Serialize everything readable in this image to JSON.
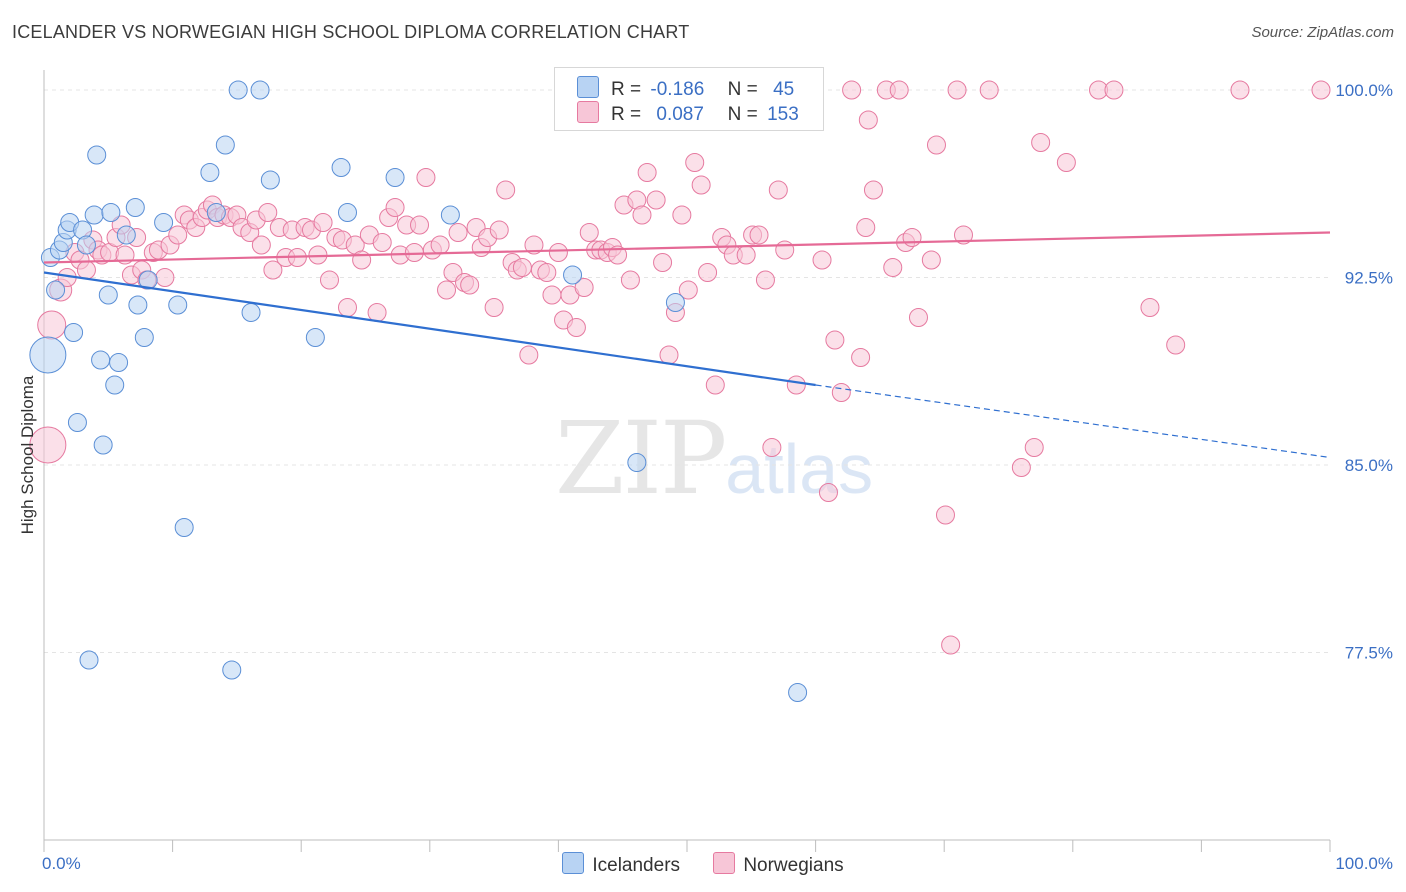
{
  "title": "ICELANDER VS NORWEGIAN HIGH SCHOOL DIPLOMA CORRELATION CHART",
  "source": "Source: ZipAtlas.com",
  "watermark": {
    "zip": "ZIP",
    "atlas": "atlas"
  },
  "colors": {
    "blue": "#5b8fd6",
    "blue_fill": "#b8d3f3",
    "pink": "#e67aa0",
    "pink_fill": "#f7c6d7",
    "blue_line": "#2f6fd0",
    "pink_line": "#e56a96",
    "tick_text": "#3b6fc4"
  },
  "legend_top": [
    {
      "r_label": "R =",
      "r_value": "-0.186",
      "n_label": "N =",
      "n_value": "45"
    },
    {
      "r_label": "R =",
      "r_value": "0.087",
      "n_label": "N =",
      "n_value": "153"
    }
  ],
  "legend_bottom": [
    {
      "label": "Icelanders"
    },
    {
      "label": "Norwegians"
    }
  ],
  "chart_data": {
    "type": "scatter",
    "xlabel": "",
    "ylabel": "High School Diploma",
    "xlim": [
      0,
      100
    ],
    "ylim": [
      70,
      100.8
    ],
    "x_tick_labels": [
      "0.0%",
      "100.0%"
    ],
    "y_ticks": [
      77.5,
      85.0,
      92.5,
      100.0
    ],
    "y_tick_labels": [
      "77.5%",
      "85.0%",
      "92.5%",
      "100.0%"
    ],
    "grid": true,
    "series": [
      {
        "name": "Icelanders",
        "trend": {
          "x0": 0,
          "y0": 92.7,
          "x1": 60,
          "y1": 88.2,
          "dash_x1": 100,
          "dash_y1": 85.3
        },
        "points": [
          [
            0.3,
            89.4,
            18
          ],
          [
            0.5,
            93.3,
            9
          ],
          [
            0.9,
            92.0,
            9
          ],
          [
            1.2,
            93.6,
            9
          ],
          [
            1.5,
            93.9,
            9
          ],
          [
            1.8,
            94.4,
            9
          ],
          [
            2.0,
            94.7,
            9
          ],
          [
            2.3,
            90.3,
            9
          ],
          [
            2.6,
            86.7,
            9
          ],
          [
            3.0,
            94.4,
            9
          ],
          [
            3.3,
            93.8,
            9
          ],
          [
            3.5,
            77.2,
            9
          ],
          [
            3.9,
            95.0,
            9
          ],
          [
            4.1,
            97.4,
            9
          ],
          [
            4.4,
            89.2,
            9
          ],
          [
            4.6,
            85.8,
            9
          ],
          [
            5.0,
            91.8,
            9
          ],
          [
            5.2,
            95.1,
            9
          ],
          [
            5.5,
            88.2,
            9
          ],
          [
            5.8,
            89.1,
            9
          ],
          [
            6.4,
            94.2,
            9
          ],
          [
            7.1,
            95.3,
            9
          ],
          [
            7.3,
            91.4,
            9
          ],
          [
            7.8,
            90.1,
            9
          ],
          [
            8.1,
            92.4,
            9
          ],
          [
            9.3,
            94.7,
            9
          ],
          [
            10.4,
            91.4,
            9
          ],
          [
            10.9,
            82.5,
            9
          ],
          [
            12.9,
            96.7,
            9
          ],
          [
            13.4,
            95.1,
            9
          ],
          [
            14.1,
            97.8,
            9
          ],
          [
            14.6,
            76.8,
            9
          ],
          [
            15.1,
            100.0,
            9
          ],
          [
            16.1,
            91.1,
            9
          ],
          [
            16.8,
            100.0,
            9
          ],
          [
            17.6,
            96.4,
            9
          ],
          [
            21.1,
            90.1,
            9
          ],
          [
            23.1,
            96.9,
            9
          ],
          [
            23.6,
            95.1,
            9
          ],
          [
            27.3,
            96.5,
            9
          ],
          [
            31.6,
            95.0,
            9
          ],
          [
            41.1,
            92.6,
            9
          ],
          [
            46.1,
            85.1,
            9
          ],
          [
            49.1,
            91.5,
            9
          ],
          [
            58.6,
            75.9,
            9
          ]
        ]
      },
      {
        "name": "Norwegians",
        "trend": {
          "x0": 0,
          "y0": 93.1,
          "x1": 100,
          "y1": 94.3
        },
        "points": [
          [
            0.3,
            85.8,
            18
          ],
          [
            0.6,
            90.6,
            14
          ],
          [
            1.3,
            92.0,
            11
          ],
          [
            1.8,
            92.5,
            9
          ],
          [
            2.4,
            93.5,
            9
          ],
          [
            2.8,
            93.2,
            9
          ],
          [
            3.3,
            92.8,
            9
          ],
          [
            3.8,
            94.0,
            9
          ],
          [
            4.2,
            93.6,
            9
          ],
          [
            4.5,
            93.4,
            9
          ],
          [
            5.1,
            93.5,
            9
          ],
          [
            5.6,
            94.1,
            9
          ],
          [
            6.0,
            94.6,
            9
          ],
          [
            6.3,
            93.4,
            9
          ],
          [
            6.8,
            92.6,
            9
          ],
          [
            7.2,
            94.1,
            9
          ],
          [
            7.6,
            92.8,
            9
          ],
          [
            8.0,
            92.4,
            9
          ],
          [
            8.5,
            93.5,
            9
          ],
          [
            8.9,
            93.6,
            9
          ],
          [
            9.4,
            92.5,
            9
          ],
          [
            9.8,
            93.8,
            9
          ],
          [
            10.4,
            94.2,
            9
          ],
          [
            10.9,
            95.0,
            9
          ],
          [
            11.3,
            94.8,
            9
          ],
          [
            11.8,
            94.5,
            9
          ],
          [
            12.3,
            94.9,
            9
          ],
          [
            12.7,
            95.2,
            9
          ],
          [
            13.1,
            95.4,
            9
          ],
          [
            13.5,
            94.9,
            9
          ],
          [
            14.0,
            95.0,
            9
          ],
          [
            14.5,
            94.9,
            9
          ],
          [
            15.0,
            95.0,
            9
          ],
          [
            15.4,
            94.5,
            9
          ],
          [
            16.0,
            94.3,
            9
          ],
          [
            16.5,
            94.8,
            9
          ],
          [
            16.9,
            93.8,
            9
          ],
          [
            17.4,
            95.1,
            9
          ],
          [
            17.8,
            92.8,
            9
          ],
          [
            18.3,
            94.5,
            9
          ],
          [
            18.8,
            93.3,
            9
          ],
          [
            19.3,
            94.4,
            9
          ],
          [
            19.7,
            93.3,
            9
          ],
          [
            20.3,
            94.5,
            9
          ],
          [
            20.8,
            94.4,
            9
          ],
          [
            21.3,
            93.4,
            9
          ],
          [
            21.7,
            94.7,
            9
          ],
          [
            22.2,
            92.4,
            9
          ],
          [
            22.7,
            94.1,
            9
          ],
          [
            23.2,
            94.0,
            9
          ],
          [
            23.6,
            91.3,
            9
          ],
          [
            24.2,
            93.8,
            9
          ],
          [
            24.7,
            93.2,
            9
          ],
          [
            25.3,
            94.2,
            9
          ],
          [
            25.9,
            91.1,
            9
          ],
          [
            26.3,
            93.9,
            9
          ],
          [
            26.8,
            94.9,
            9
          ],
          [
            27.3,
            95.3,
            9
          ],
          [
            27.7,
            93.4,
            9
          ],
          [
            28.2,
            94.6,
            9
          ],
          [
            28.8,
            93.5,
            9
          ],
          [
            29.2,
            94.6,
            9
          ],
          [
            29.7,
            96.5,
            9
          ],
          [
            30.2,
            93.6,
            9
          ],
          [
            30.8,
            93.8,
            9
          ],
          [
            31.3,
            92.0,
            9
          ],
          [
            31.8,
            92.7,
            9
          ],
          [
            32.2,
            94.3,
            9
          ],
          [
            32.7,
            92.3,
            9
          ],
          [
            33.1,
            92.2,
            9
          ],
          [
            33.6,
            94.5,
            9
          ],
          [
            34.0,
            93.7,
            9
          ],
          [
            34.5,
            94.1,
            9
          ],
          [
            35.0,
            91.3,
            9
          ],
          [
            35.4,
            94.4,
            9
          ],
          [
            35.9,
            96.0,
            9
          ],
          [
            36.4,
            93.1,
            9
          ],
          [
            36.8,
            92.8,
            9
          ],
          [
            37.2,
            92.9,
            9
          ],
          [
            37.7,
            89.4,
            9
          ],
          [
            38.1,
            93.8,
            9
          ],
          [
            38.6,
            92.8,
            9
          ],
          [
            39.1,
            92.7,
            9
          ],
          [
            39.5,
            91.8,
            9
          ],
          [
            40.0,
            93.5,
            9
          ],
          [
            40.4,
            90.8,
            9
          ],
          [
            40.9,
            91.8,
            9
          ],
          [
            41.4,
            90.5,
            9
          ],
          [
            42.0,
            92.1,
            9
          ],
          [
            42.4,
            94.3,
            9
          ],
          [
            42.9,
            93.6,
            9
          ],
          [
            43.3,
            93.6,
            9
          ],
          [
            43.8,
            93.5,
            9
          ],
          [
            44.2,
            93.7,
            9
          ],
          [
            44.6,
            93.4,
            9
          ],
          [
            45.1,
            95.4,
            9
          ],
          [
            45.6,
            92.4,
            9
          ],
          [
            46.1,
            95.6,
            9
          ],
          [
            46.5,
            95.0,
            9
          ],
          [
            46.9,
            96.7,
            9
          ],
          [
            47.6,
            95.6,
            9
          ],
          [
            48.1,
            93.1,
            9
          ],
          [
            48.6,
            89.4,
            9
          ],
          [
            49.1,
            91.1,
            9
          ],
          [
            49.6,
            95.0,
            9
          ],
          [
            50.1,
            92.0,
            9
          ],
          [
            50.6,
            97.1,
            9
          ],
          [
            51.1,
            96.2,
            9
          ],
          [
            51.6,
            92.7,
            9
          ],
          [
            52.2,
            88.2,
            9
          ],
          [
            52.7,
            94.1,
            9
          ],
          [
            53.1,
            93.8,
            9
          ],
          [
            53.6,
            93.4,
            9
          ],
          [
            54.6,
            93.4,
            9
          ],
          [
            55.1,
            94.2,
            9
          ],
          [
            55.6,
            94.2,
            9
          ],
          [
            56.1,
            92.4,
            9
          ],
          [
            56.6,
            85.7,
            9
          ],
          [
            57.1,
            96.0,
            9
          ],
          [
            57.6,
            93.6,
            9
          ],
          [
            58.5,
            88.2,
            9
          ],
          [
            59.6,
            100.0,
            9
          ],
          [
            60.5,
            93.2,
            9
          ],
          [
            61.0,
            83.9,
            9
          ],
          [
            61.5,
            90.0,
            9
          ],
          [
            62.0,
            87.9,
            9
          ],
          [
            62.8,
            100.0,
            9
          ],
          [
            63.5,
            89.3,
            9
          ],
          [
            63.9,
            94.5,
            9
          ],
          [
            64.5,
            96.0,
            9
          ],
          [
            64.1,
            98.8,
            9
          ],
          [
            65.5,
            100.0,
            9
          ],
          [
            66.0,
            92.9,
            9
          ],
          [
            66.5,
            100.0,
            9
          ],
          [
            67.0,
            93.9,
            9
          ],
          [
            67.5,
            94.1,
            9
          ],
          [
            68.0,
            90.9,
            9
          ],
          [
            69.0,
            93.2,
            9
          ],
          [
            69.4,
            97.8,
            9
          ],
          [
            70.1,
            83.0,
            9
          ],
          [
            70.5,
            77.8,
            9
          ],
          [
            71.0,
            100.0,
            9
          ],
          [
            71.5,
            94.2,
            9
          ],
          [
            73.5,
            100.0,
            9
          ],
          [
            76.0,
            84.9,
            9
          ],
          [
            77.0,
            85.7,
            9
          ],
          [
            77.5,
            97.9,
            9
          ],
          [
            79.5,
            97.1,
            9
          ],
          [
            82.0,
            100.0,
            9
          ],
          [
            83.2,
            100.0,
            9
          ],
          [
            86.0,
            91.3,
            9
          ],
          [
            88.0,
            89.8,
            9
          ],
          [
            93.0,
            100.0,
            9
          ],
          [
            99.3,
            100.0,
            9
          ]
        ]
      }
    ]
  }
}
